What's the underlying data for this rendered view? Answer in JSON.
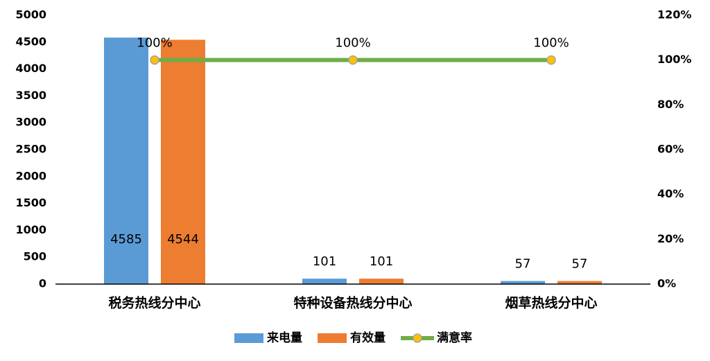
{
  "chart_data": {
    "type": "bar",
    "categories": [
      "税务热线分中心",
      "特种设备热线分中心",
      "烟草热线分中心"
    ],
    "series": [
      {
        "name": "来电量",
        "color": "#5b9bd5",
        "values": [
          4585,
          101,
          57
        ]
      },
      {
        "name": "有效量",
        "color": "#ed7d31",
        "values": [
          4544,
          101,
          57
        ]
      },
      {
        "name": "满意率",
        "type": "line",
        "axis": "y2",
        "color": "#70ad47",
        "marker_color": "#ffc000",
        "values": [
          100,
          100,
          100
        ],
        "value_labels": [
          "100%",
          "100%",
          "100%"
        ]
      }
    ],
    "ylim": [
      0,
      5000
    ],
    "yticks": [
      0,
      500,
      1000,
      1500,
      2000,
      2500,
      3000,
      3500,
      4000,
      4500,
      5000
    ],
    "y2lim": [
      0,
      120
    ],
    "y2ticks": [
      {
        "value": 0,
        "label": "0%"
      },
      {
        "value": 20,
        "label": "20%"
      },
      {
        "value": 40,
        "label": "40%"
      },
      {
        "value": 60,
        "label": "60%"
      },
      {
        "value": 80,
        "label": "80%"
      },
      {
        "value": 100,
        "label": "100%"
      },
      {
        "value": 120,
        "label": "120%"
      }
    ],
    "legend": "bottom"
  }
}
